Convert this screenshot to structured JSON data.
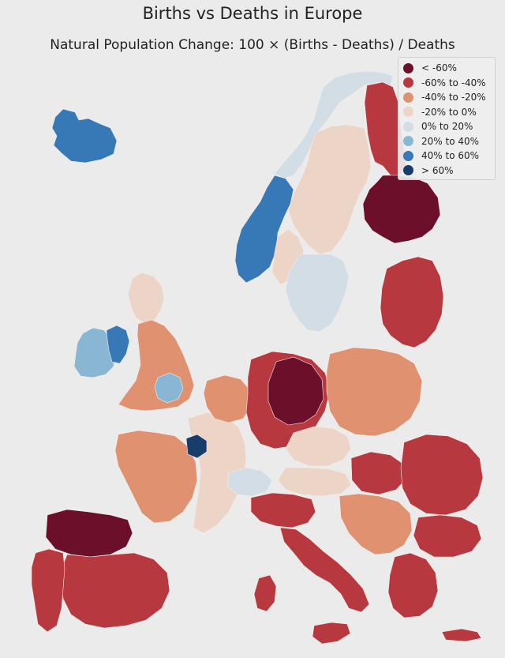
{
  "title": "Births vs Deaths in Europe",
  "subtitle": "Natural Population Change: 100 × (Births - Deaths) / Deaths",
  "legend": {
    "items": [
      {
        "label": "< -60%",
        "color": "#6b0f2a"
      },
      {
        "label": "-60% to -40%",
        "color": "#b8383f"
      },
      {
        "label": "-40% to -20%",
        "color": "#e0916f"
      },
      {
        "label": "-20% to 0%",
        "color": "#ecd5c6"
      },
      {
        "label": "0% to 20%",
        "color": "#d2dde5"
      },
      {
        "label": "20% to 40%",
        "color": "#88b6d3"
      },
      {
        "label": "40% to 60%",
        "color": "#3679b6"
      },
      {
        "label": "> 60%",
        "color": "#173d6b"
      }
    ]
  },
  "regions": [
    {
      "name": "Iceland",
      "class": 6
    },
    {
      "name": "Norway north",
      "class": 4
    },
    {
      "name": "Norway west",
      "class": 6
    },
    {
      "name": "Norway central",
      "class": 3
    },
    {
      "name": "Sweden north",
      "class": 3
    },
    {
      "name": "Sweden central",
      "class": 2
    },
    {
      "name": "Sweden south",
      "class": 4
    },
    {
      "name": "Finland north",
      "class": 1
    },
    {
      "name": "Finland south",
      "class": 0
    },
    {
      "name": "Ireland",
      "class": 5
    },
    {
      "name": "Dublin",
      "class": 6
    },
    {
      "name": "Scotland",
      "class": 3
    },
    {
      "name": "England",
      "class": 2
    },
    {
      "name": "London",
      "class": 5
    },
    {
      "name": "France west",
      "class": 2
    },
    {
      "name": "France east",
      "class": 3
    },
    {
      "name": "Paris",
      "class": 7
    },
    {
      "name": "Benelux",
      "class": 2
    },
    {
      "name": "Germany",
      "class": 1
    },
    {
      "name": "Germany east",
      "class": 0
    },
    {
      "name": "Poland",
      "class": 2
    },
    {
      "name": "Baltics",
      "class": 1
    },
    {
      "name": "Czechia",
      "class": 3
    },
    {
      "name": "Austria",
      "class": 3
    },
    {
      "name": "Switzerland",
      "class": 4
    },
    {
      "name": "Italy north",
      "class": 1
    },
    {
      "name": "Italy south",
      "class": 1
    },
    {
      "name": "Sardinia",
      "class": 1
    },
    {
      "name": "Sicily",
      "class": 1
    },
    {
      "name": "Spain north",
      "class": 0
    },
    {
      "name": "Spain south",
      "class": 1
    },
    {
      "name": "Portugal",
      "class": 1
    },
    {
      "name": "Hungary",
      "class": 1
    },
    {
      "name": "Romania",
      "class": 1
    },
    {
      "name": "Bulgaria",
      "class": 1
    },
    {
      "name": "Balkans west",
      "class": 2
    },
    {
      "name": "Greece",
      "class": 1
    },
    {
      "name": "Crete",
      "class": 1
    }
  ]
}
